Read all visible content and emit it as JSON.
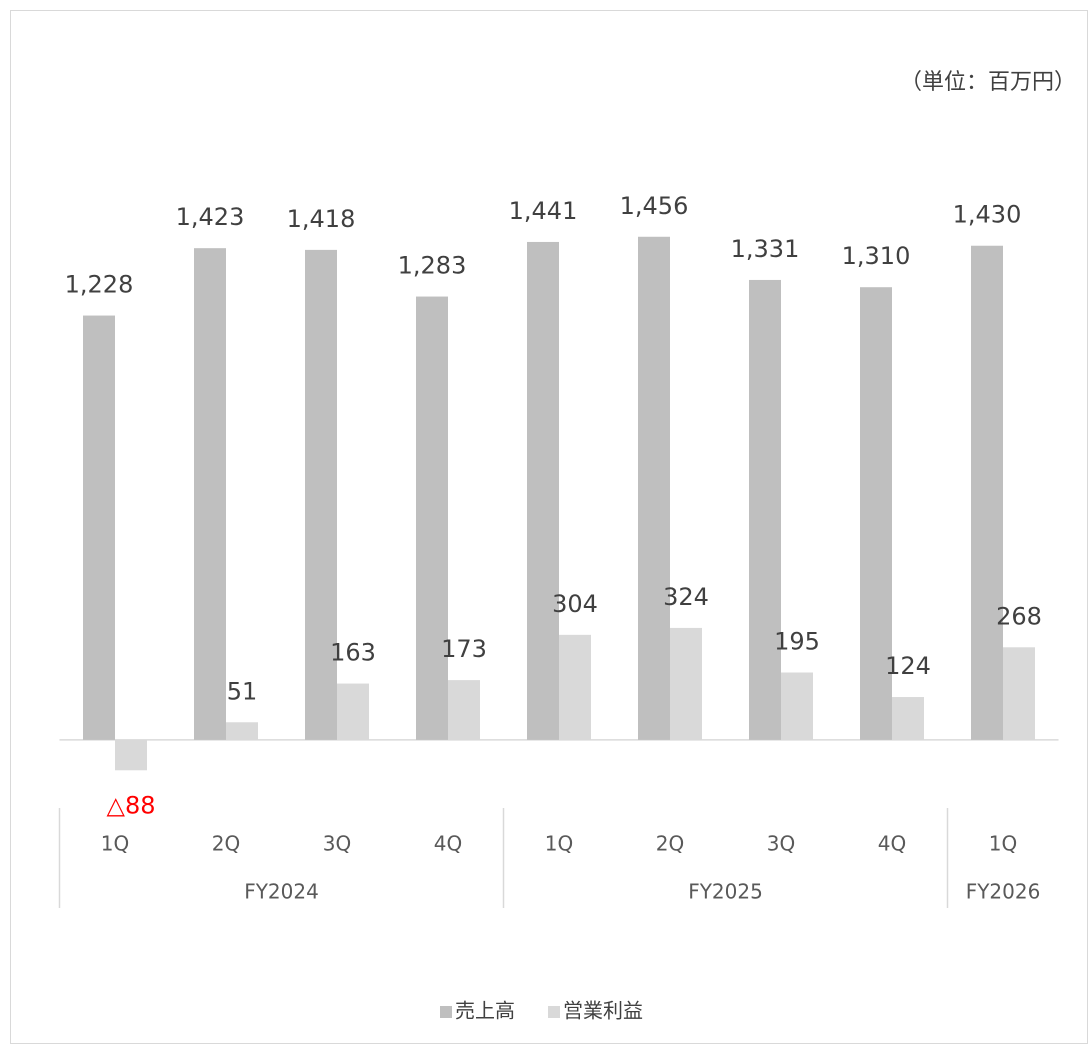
{
  "chart_data": {
    "type": "bar",
    "unit_label": "（単位：百万円）",
    "categories": [
      "1Q",
      "2Q",
      "3Q",
      "4Q",
      "1Q",
      "2Q",
      "3Q",
      "4Q",
      "1Q"
    ],
    "category_groups": [
      {
        "name": "FY2024",
        "count": 4
      },
      {
        "name": "FY2025",
        "count": 4
      },
      {
        "name": "FY2026",
        "count": 1
      }
    ],
    "series": [
      {
        "name": "売上高",
        "color": "#bfbfbf",
        "values": [
          1228,
          1423,
          1418,
          1283,
          1441,
          1456,
          1331,
          1310,
          1430
        ],
        "value_labels": [
          "1,228",
          "1,423",
          "1,418",
          "1,283",
          "1,441",
          "1,456",
          "1,331",
          "1,310",
          "1,430"
        ]
      },
      {
        "name": "営業利益",
        "color": "#d9d9d9",
        "values": [
          -88,
          51,
          163,
          173,
          304,
          324,
          195,
          124,
          268
        ],
        "value_labels": [
          "△88",
          "51",
          "163",
          "173",
          "304",
          "324",
          "195",
          "124",
          "268"
        ]
      }
    ],
    "negative_label_color": "#ff0000",
    "ylim": [
      -200,
      1600
    ],
    "legend": "bottom"
  }
}
